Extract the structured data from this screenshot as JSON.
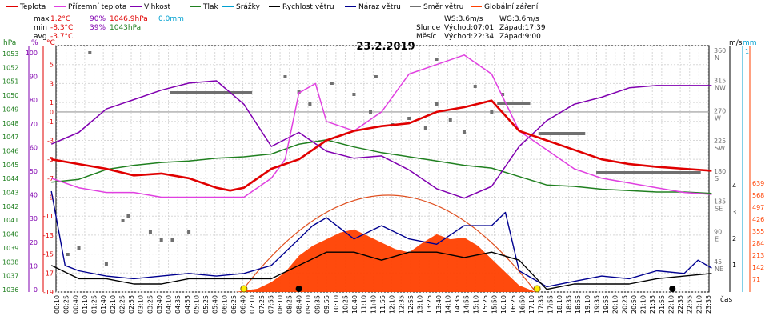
{
  "legend": [
    {
      "label": "Teplota",
      "color": "#e00000"
    },
    {
      "label": "Přízemní teplota",
      "color": "#e040e0"
    },
    {
      "label": "Vlhkost",
      "color": "#8000b0"
    },
    {
      "label": "Tlak",
      "color": "#208020"
    },
    {
      "label": "Srážky",
      "color": "#00a0d0"
    },
    {
      "label": "Rychlost větru",
      "color": "#000000"
    },
    {
      "label": "Náraz větru",
      "color": "#000090"
    },
    {
      "label": "Směr větru",
      "color": "#707070"
    },
    {
      "label": "Globální záření",
      "color": "#ff4000"
    }
  ],
  "stats": {
    "max": {
      "label": "max",
      "temp": "1.2°C",
      "hum": "90%",
      "press": "1046.9hPa",
      "rain": "0.0mm"
    },
    "min": {
      "label": "min",
      "temp": "-8.3°C",
      "hum": "39%",
      "press": "1043hPa"
    },
    "avg": {
      "label": "avg",
      "temp": "-3.7°C"
    }
  },
  "info": {
    "ws": "WS:3.6m/s",
    "wg": "WG:3.6m/s",
    "sun_label": "Slunce",
    "sunrise": "Východ:07:01",
    "sunset": "Západ:17:39",
    "moon_label": "Měsíc",
    "moonrise": "Východ:22:34",
    "moonset": "Západ:9:00"
  },
  "chart_data": {
    "type": "line",
    "title": "23.2.2019",
    "xlabel": "čas",
    "axes_units": {
      "hpa": "hPa",
      "pct": "%",
      "deg": "°C",
      "ms": "m/s",
      "mm": "mm"
    },
    "axes": {
      "pressure_hpa": {
        "ticks": [
          1053,
          1052,
          1051,
          1050,
          1049,
          1048,
          1047,
          1046,
          1045,
          1044,
          1043,
          1042,
          1041,
          1040,
          1039,
          1038,
          1037,
          1036
        ],
        "color": "#208020"
      },
      "humidity_pct": {
        "ticks": [
          100,
          90,
          80,
          70,
          60,
          50,
          40,
          30,
          20,
          10,
          0
        ],
        "color": "#8000b0"
      },
      "temperature_c": {
        "ticks": [
          5,
          3,
          1,
          0,
          -1,
          -3,
          -5,
          -7,
          -9,
          -11,
          -13,
          -15,
          -17,
          -19
        ],
        "color": "#e00000"
      },
      "wind_dir": {
        "ticks": [
          "360 N",
          "315 NW",
          "270 W",
          "225 SW",
          "180 S",
          "135 SE",
          "90 E",
          "45 NE"
        ],
        "color": "#707070"
      },
      "wind_ms": {
        "ticks": [
          4,
          3,
          2,
          1
        ],
        "color": "#000000"
      },
      "rain_mm": {
        "ticks": [
          1
        ],
        "color": "#00a0d0"
      },
      "radiation": {
        "ticks": [
          639,
          568,
          497,
          426,
          355,
          284,
          213,
          142,
          71
        ],
        "color": "#ff4000"
      }
    },
    "x_ticks": [
      "00:10",
      "00:25",
      "00:40",
      "01:10",
      "01:25",
      "01:40",
      "02:10",
      "02:25",
      "02:55",
      "03:10",
      "03:25",
      "03:40",
      "04:10",
      "04:35",
      "04:55",
      "05:10",
      "05:25",
      "05:40",
      "06:10",
      "06:25",
      "06:40",
      "07:10",
      "07:25",
      "07:55",
      "08:10",
      "08:25",
      "08:40",
      "09:10",
      "09:35",
      "09:55",
      "10:10",
      "10:25",
      "10:40",
      "11:10",
      "11:40",
      "11:55",
      "12:10",
      "12:35",
      "12:55",
      "13:10",
      "13:25",
      "13:40",
      "14:10",
      "14:35",
      "14:55",
      "15:10",
      "15:25",
      "15:50",
      "16:10",
      "16:25",
      "16:50",
      "17:10",
      "17:35",
      "17:55",
      "18:10",
      "18:35",
      "18:55",
      "19:10",
      "19:35",
      "19:55",
      "20:10",
      "20:25",
      "20:50",
      "21:10",
      "21:35",
      "21:55",
      "22:10",
      "22:35",
      "22:55",
      "23:10",
      "23:35"
    ],
    "series": [
      {
        "name": "Teplota",
        "color": "#e00000",
        "unit": "°C",
        "hours": [
          0,
          1,
          2,
          3,
          4,
          5,
          6,
          6.5,
          7,
          8,
          9,
          10,
          11,
          12,
          13,
          14,
          15,
          16,
          17,
          18,
          19,
          20,
          21,
          22,
          23,
          24
        ],
        "values": [
          -5,
          -5.5,
          -6,
          -6.7,
          -6.5,
          -7,
          -8,
          -8.3,
          -8,
          -6,
          -5,
          -3,
          -2,
          -1.5,
          -1.2,
          0,
          0.5,
          1.2,
          -2,
          -3,
          -4,
          -5,
          -5.5,
          -5.8,
          -6,
          -6.2
        ]
      },
      {
        "name": "Přízemní teplota",
        "color": "#e040e0",
        "unit": "°C",
        "hours": [
          0,
          1,
          2,
          3,
          4,
          5,
          6,
          7,
          8,
          8.5,
          9,
          9.6,
          10,
          11,
          12,
          13,
          14,
          15,
          16,
          17,
          18,
          19,
          20,
          21,
          22,
          23,
          24
        ],
        "values": [
          -7,
          -8,
          -8.5,
          -8.5,
          -9,
          -9,
          -9,
          -9,
          -7,
          -5,
          2,
          3,
          -1,
          -2,
          0,
          4,
          5,
          6,
          4,
          -2,
          -4,
          -6,
          -7,
          -7.5,
          -8,
          -8.5,
          -8.7
        ]
      },
      {
        "name": "Vlhkost",
        "color": "#8000b0",
        "unit": "%",
        "hours": [
          0,
          1,
          2,
          3,
          4,
          5,
          6,
          7,
          8,
          9,
          10,
          11,
          12,
          13,
          14,
          15,
          16,
          17,
          18,
          19,
          20,
          21,
          22,
          23,
          24
        ],
        "values": [
          63,
          68,
          78,
          82,
          86,
          89,
          90,
          80,
          62,
          68,
          60,
          57,
          58,
          52,
          44,
          40,
          45,
          62,
          73,
          80,
          83,
          87,
          88,
          88,
          88
        ]
      },
      {
        "name": "Tlak",
        "color": "#208020",
        "unit": "hPa",
        "hours": [
          0,
          1,
          2,
          3,
          4,
          5,
          6,
          7,
          8,
          9,
          10,
          11,
          12,
          13,
          14,
          15,
          16,
          17,
          18,
          19,
          20,
          21,
          22,
          23,
          24
        ],
        "values": [
          1043.8,
          1044,
          1044.7,
          1045,
          1045.2,
          1045.3,
          1045.5,
          1045.6,
          1045.8,
          1046.5,
          1046.8,
          1046.3,
          1045.9,
          1045.6,
          1045.3,
          1045,
          1044.8,
          1044.2,
          1043.6,
          1043.5,
          1043.3,
          1043.2,
          1043.1,
          1043.1,
          1043
        ]
      },
      {
        "name": "Globální záření",
        "color": "#ff4000",
        "unit": "W/m²",
        "hours": [
          6.7,
          7.5,
          8,
          8.5,
          9,
          9.5,
          10,
          10.5,
          11,
          11.5,
          12,
          12.5,
          13,
          13.5,
          14,
          14.5,
          15,
          15.5,
          16,
          16.5,
          17,
          17.6
        ],
        "values": [
          0,
          20,
          60,
          120,
          220,
          280,
          320,
          360,
          380,
          340,
          300,
          260,
          240,
          300,
          350,
          320,
          330,
          280,
          200,
          120,
          40,
          0
        ]
      },
      {
        "name": "Náraz větru",
        "color": "#000090",
        "unit": "m/s",
        "hours": [
          0,
          0.5,
          1,
          2,
          3,
          4,
          5,
          6,
          7,
          8,
          9,
          9.5,
          10,
          11,
          12,
          13,
          14,
          15,
          16,
          16.5,
          17,
          18,
          19,
          20,
          21,
          22,
          23,
          23.5,
          24
        ],
        "values": [
          3.8,
          1,
          0.8,
          0.6,
          0.5,
          0.6,
          0.7,
          0.6,
          0.7,
          1,
          2,
          2.5,
          2.8,
          2,
          2.5,
          2,
          1.8,
          2.5,
          2.5,
          3,
          0.8,
          0.2,
          0.4,
          0.6,
          0.5,
          0.8,
          0.7,
          1.2,
          0.9
        ]
      },
      {
        "name": "Rychlost větru",
        "color": "#000000",
        "unit": "m/s",
        "hours": [
          0,
          1,
          2,
          3,
          4,
          5,
          6,
          7,
          8,
          9,
          10,
          11,
          12,
          13,
          14,
          15,
          16,
          17,
          18,
          19,
          20,
          21,
          22,
          23,
          24
        ],
        "values": [
          1,
          0.5,
          0.5,
          0.3,
          0.3,
          0.5,
          0.5,
          0.5,
          0.5,
          1,
          1.5,
          1.5,
          1.2,
          1.5,
          1.5,
          1.3,
          1.5,
          1.2,
          0.1,
          0.3,
          0.3,
          0.3,
          0.5,
          0.6,
          0.7
        ]
      }
    ]
  }
}
